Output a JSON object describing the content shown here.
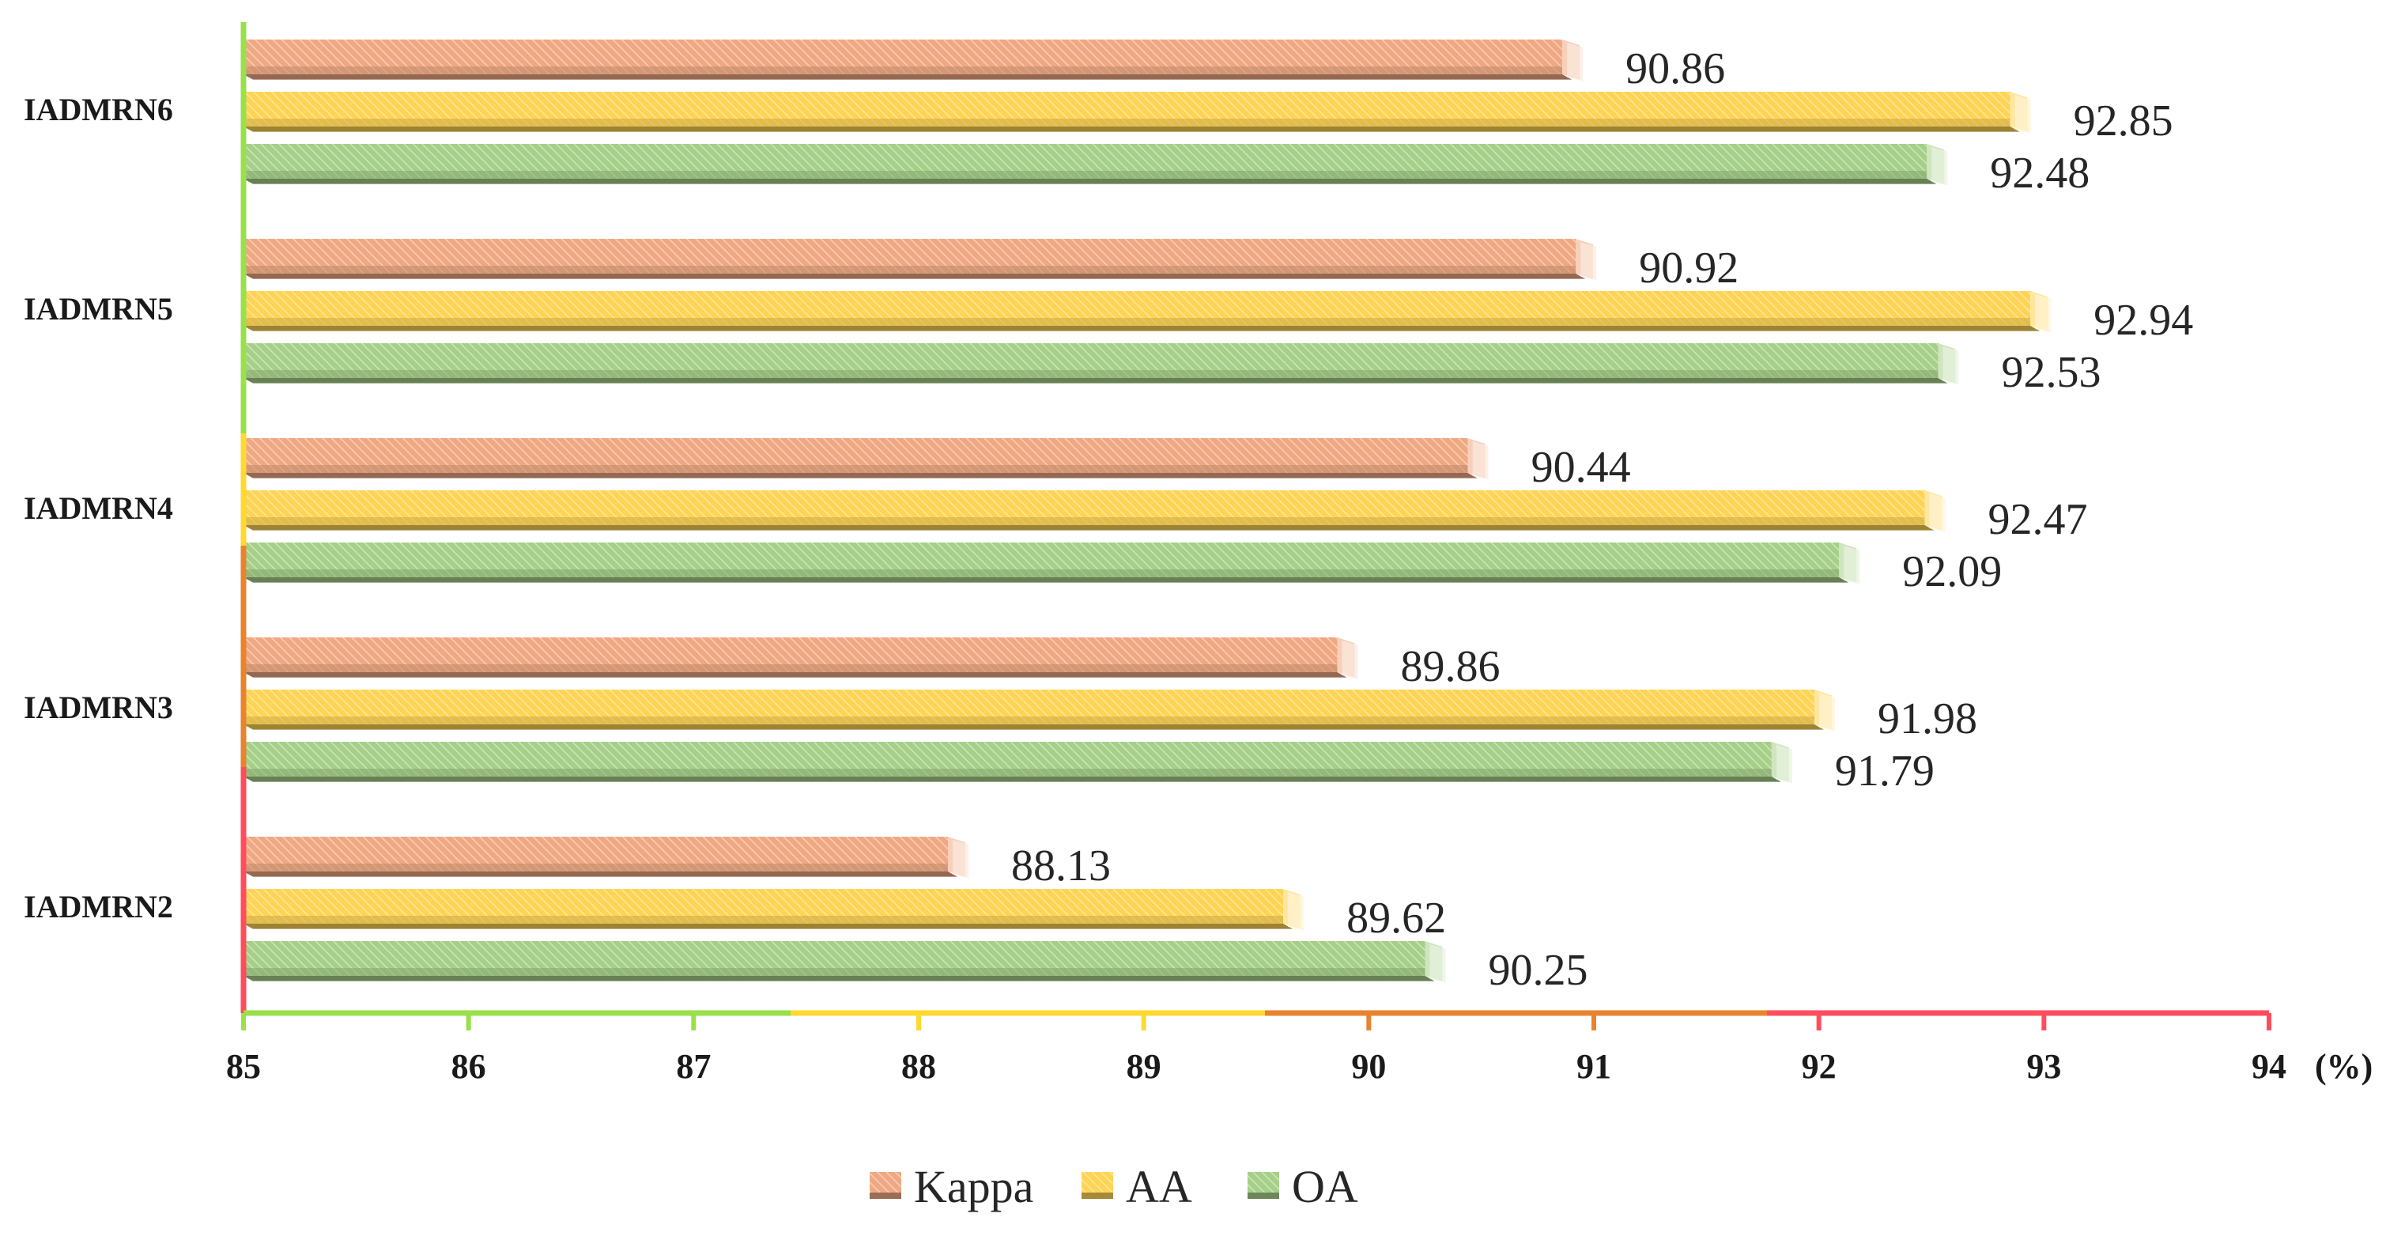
{
  "chart_data": {
    "type": "bar",
    "orientation": "horizontal",
    "style": "3d-hatched",
    "categories": [
      "IADMRN2",
      "IADMRN3",
      "IADMRN4",
      "IADMRN5",
      "IADMRN6"
    ],
    "series": [
      {
        "name": "Kappa",
        "color": "#F0A882",
        "values": [
          88.13,
          89.86,
          90.44,
          90.92,
          90.86
        ],
        "labels": [
          "88.13",
          "89.86",
          "90.44",
          "90.92",
          "90.86"
        ]
      },
      {
        "name": "AA",
        "color": "#FFD454",
        "values": [
          89.62,
          91.98,
          92.47,
          92.94,
          92.85
        ],
        "labels": [
          "89.62",
          "91.98",
          "92.47",
          "92.94",
          "92.85"
        ]
      },
      {
        "name": "OA",
        "color": "#A6CF88",
        "values": [
          90.25,
          91.79,
          92.09,
          92.53,
          92.48
        ],
        "labels": [
          "90.25",
          "91.79",
          "92.09",
          "92.53",
          "92.48"
        ]
      }
    ],
    "xlim": [
      85,
      94
    ],
    "xticks": [
      "85",
      "86",
      "87",
      "88",
      "89",
      "90",
      "91",
      "92",
      "93",
      "94"
    ],
    "xunit": "(%)",
    "title": "",
    "xlabel": "",
    "ylabel": "",
    "legend_position": "bottom-center",
    "axis_colors": [
      "#99E04A",
      "#FFD930",
      "#E8832E",
      "#FF4D5E"
    ]
  }
}
